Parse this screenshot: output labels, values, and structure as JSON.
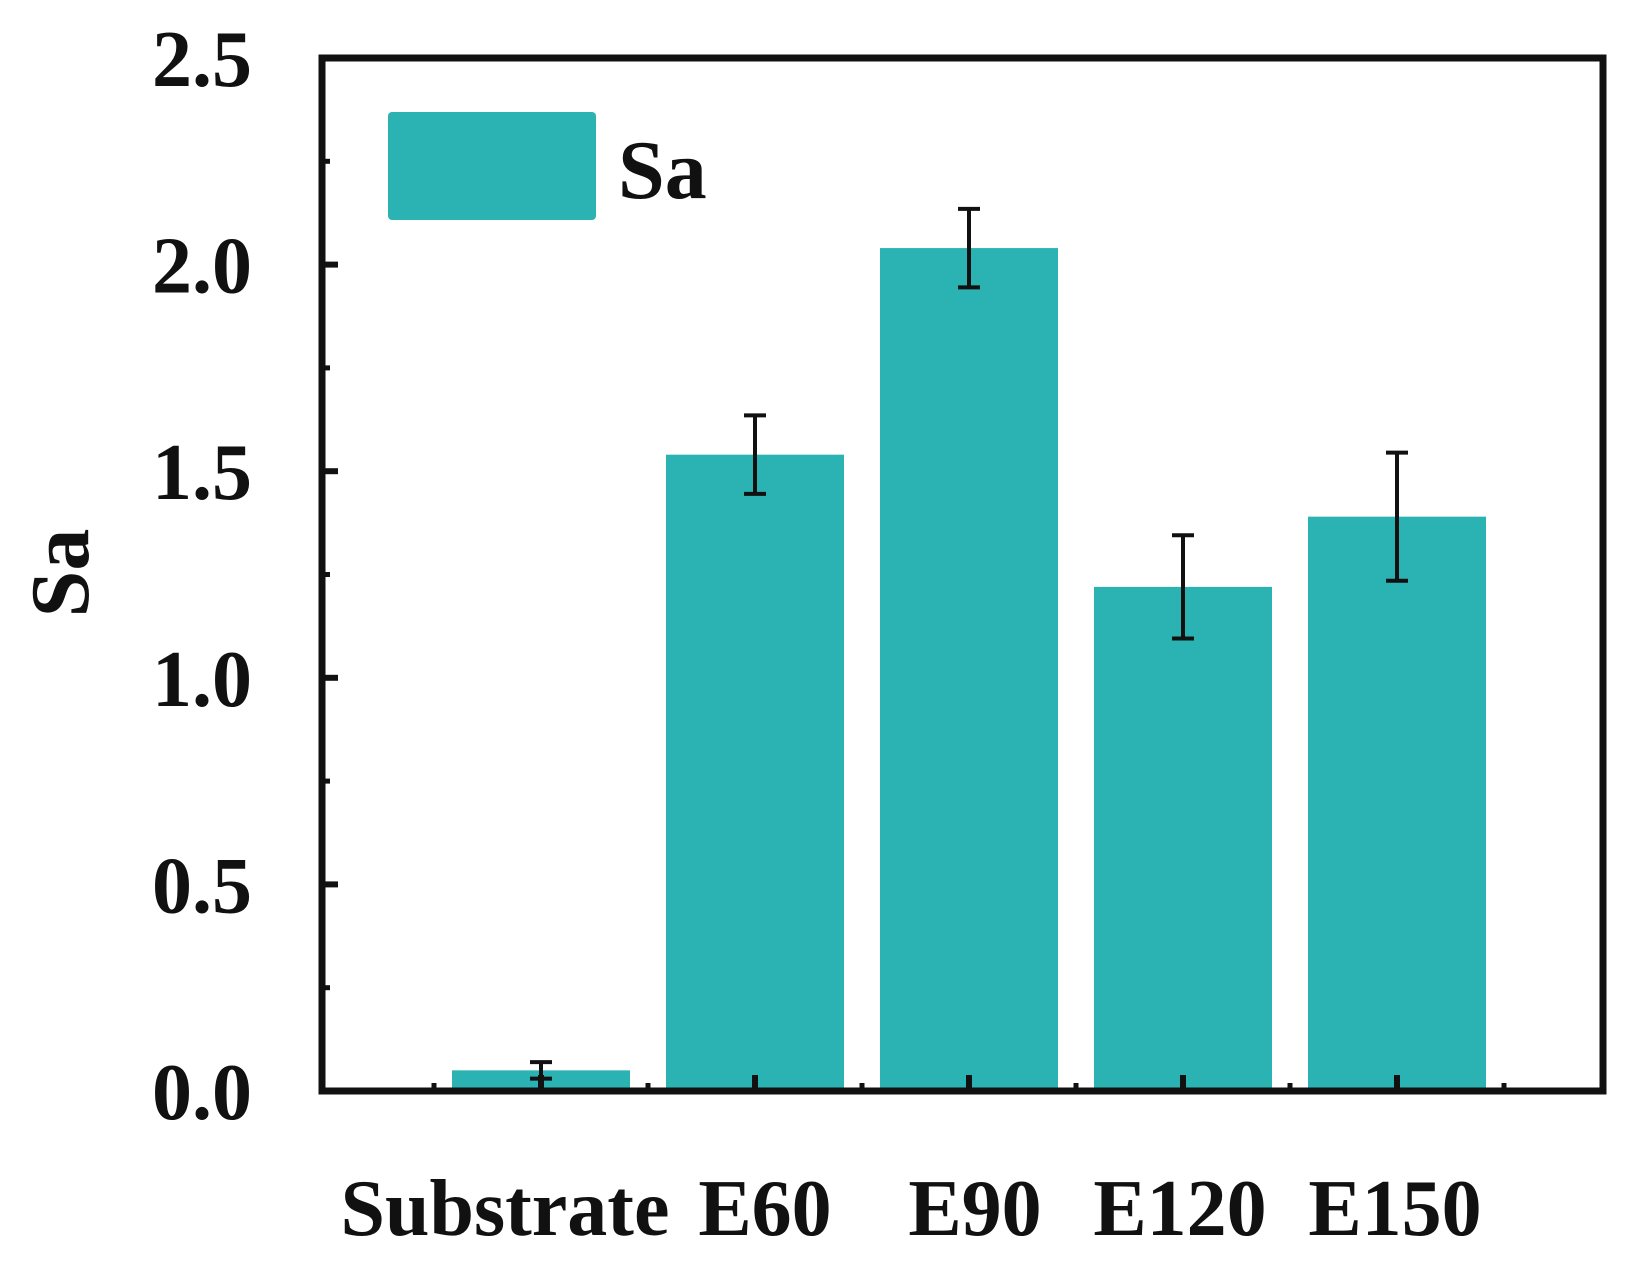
{
  "chart_data": {
    "type": "bar",
    "categories": [
      "Substrate",
      "E60",
      "E90",
      "E120",
      "E150"
    ],
    "series": [
      {
        "name": "Sa",
        "values": [
          0.05,
          1.54,
          2.04,
          1.22,
          1.39
        ],
        "errors": [
          0.02,
          0.095,
          0.095,
          0.125,
          0.155
        ],
        "color": "#2bb3b4"
      }
    ],
    "title": "",
    "xlabel": "",
    "ylabel": "Sa",
    "ylim": [
      0,
      2.5
    ],
    "yticks": [
      0.0,
      0.5,
      1.0,
      1.5,
      2.0,
      2.5
    ],
    "ytick_labels": [
      "0.0",
      "0.5",
      "1.0",
      "1.5",
      "2.0",
      "2.5"
    ],
    "grid": false,
    "legend": {
      "position": "top-left",
      "entries": [
        "Sa"
      ]
    },
    "colors": {
      "bar": "#2bb3b4",
      "axis": "#111111",
      "error_bar": "#111111"
    }
  }
}
